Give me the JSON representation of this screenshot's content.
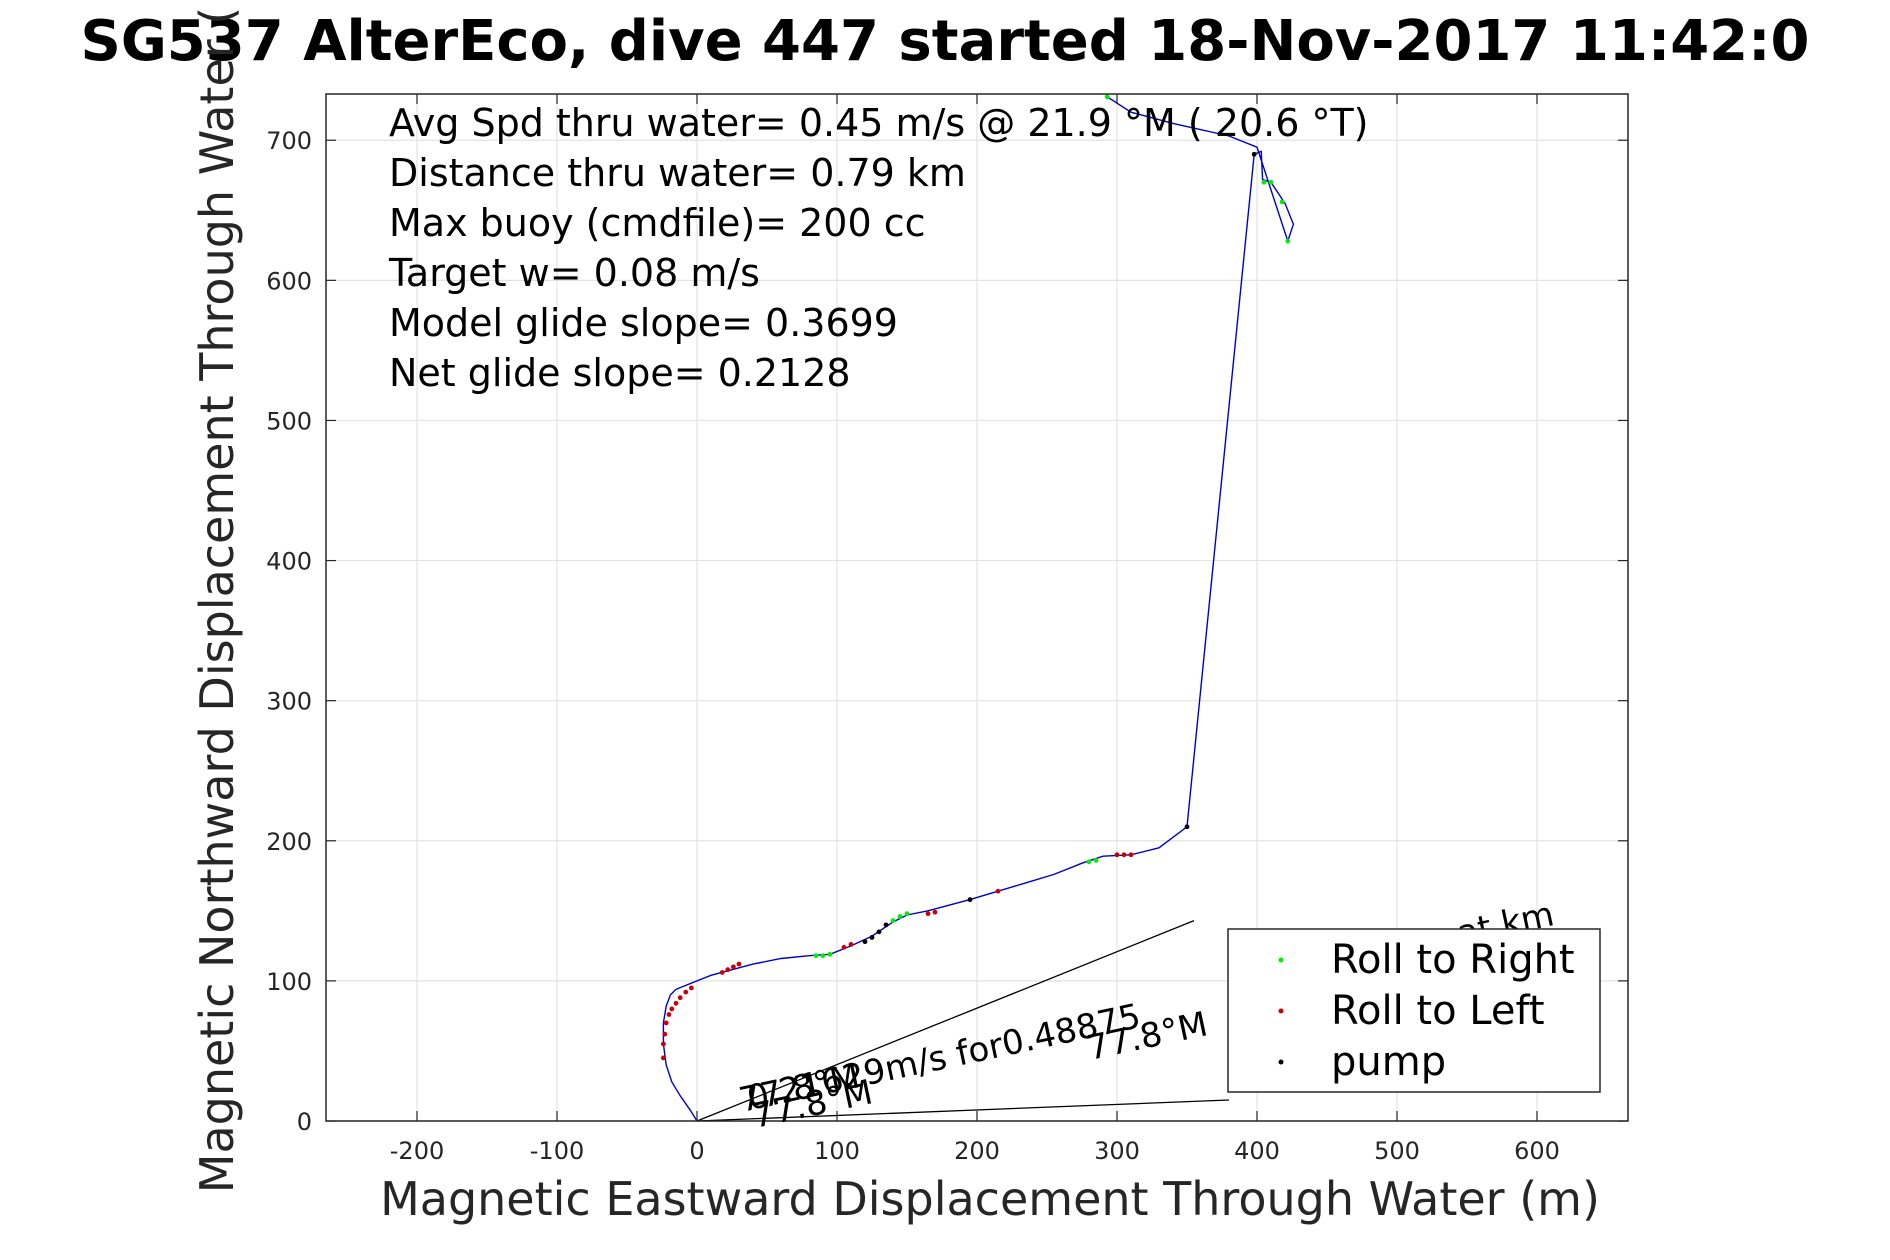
{
  "chart_data": {
    "type": "line",
    "title": "SG537 AlterEco, dive 447 started 18-Nov-2017 11:42:0",
    "xlabel": "Magnetic Eastward Displacement Through Water (m)",
    "ylabel": "Magnetic Northward Displacement Through Water (",
    "xlim": [
      -265,
      665
    ],
    "ylim": [
      0,
      733
    ],
    "xticks": [
      -200,
      -100,
      0,
      100,
      200,
      300,
      400,
      500,
      600
    ],
    "xtick_labels": [
      "-200",
      "-100",
      "0",
      "100",
      "200",
      "300",
      "400",
      "500",
      "600"
    ],
    "yticks": [
      0,
      100,
      200,
      300,
      400,
      500,
      600,
      700
    ],
    "ytick_labels": [
      "0",
      "100",
      "200",
      "300",
      "400",
      "500",
      "600",
      "700"
    ],
    "grid": true,
    "legend_position": "bottom-right",
    "annotations": [
      "Avg Spd thru water=  0.45 m/s @  21.9 °M ( 20.6 °T)",
      "Distance thru water=  0.79 km",
      "Max buoy (cmdfile)= 200 cc",
      "Target w= 0.08 m/s",
      "Model glide slope= 0.3699",
      "Net glide slope= 0.2128"
    ],
    "plot_text": {
      "current_label": "0.21629m/s for0.48875",
      "heading_label_1": "77.8°M",
      "heading_label_2": "77.8°M",
      "heading_label_3": "77.8°M",
      "partial_label": "at km"
    },
    "series": [
      {
        "name": "",
        "color": "#0000cc",
        "x": [
          0,
          -5,
          -12,
          -18,
          -22,
          -24,
          -24,
          -22,
          -19,
          -15,
          -10,
          -5,
          0,
          10,
          25,
          40,
          60,
          80,
          95,
          110,
          125,
          140,
          150,
          165,
          180,
          195,
          215,
          235,
          255,
          275,
          290,
          310,
          330,
          350,
          398,
          403,
          404,
          410,
          420,
          426,
          422,
          400,
          380,
          340,
          310,
          293
        ],
        "y": [
          0,
          8,
          18,
          28,
          40,
          55,
          70,
          82,
          90,
          94,
          96,
          98,
          100,
          104,
          108,
          112,
          116,
          118,
          119,
          125,
          132,
          142,
          147,
          150,
          154,
          158,
          164,
          170,
          176,
          184,
          189,
          190,
          195,
          210,
          690,
          692,
          672,
          670,
          655,
          640,
          628,
          695,
          703,
          712,
          720,
          731
        ]
      },
      {
        "name": "",
        "color": "#000000",
        "note": "current/heading reference lines",
        "lines": [
          {
            "x": [
              0,
              355
            ],
            "y": [
              0,
              143
            ]
          },
          {
            "x": [
              0,
              380
            ],
            "y": [
              0,
              15
            ]
          }
        ]
      }
    ],
    "markers": [
      {
        "name": "Roll to Right",
        "color": "#00ee00",
        "x": [
          85,
          90,
          95,
          140,
          145,
          150,
          280,
          285,
          405,
          410,
          418,
          422,
          293
        ],
        "y": [
          118,
          118,
          119,
          143,
          146,
          148,
          185,
          186,
          670,
          670,
          656,
          628,
          731
        ]
      },
      {
        "name": "Roll to Left",
        "color": "#cc0000",
        "x": [
          -24,
          -24,
          -23,
          -22,
          -20,
          -18,
          -15,
          -12,
          -8,
          -4,
          18,
          22,
          26,
          30,
          105,
          110,
          165,
          170,
          215,
          300,
          305,
          310
        ],
        "y": [
          45,
          55,
          62,
          70,
          76,
          80,
          84,
          88,
          92,
          95,
          106,
          108,
          110,
          112,
          124,
          126,
          148,
          149,
          164,
          190,
          190,
          190
        ]
      },
      {
        "name": "pump",
        "color": "#000000",
        "x": [
          120,
          125,
          130,
          135,
          195,
          350,
          398
        ],
        "y": [
          128,
          131,
          135,
          140,
          158,
          210,
          690
        ]
      }
    ]
  },
  "legend": {
    "items": [
      {
        "label": "Roll to Right",
        "color": "#00ee00"
      },
      {
        "label": "Roll to Left",
        "color": "#cc0000"
      },
      {
        "label": "pump",
        "color": "#000000"
      }
    ]
  }
}
